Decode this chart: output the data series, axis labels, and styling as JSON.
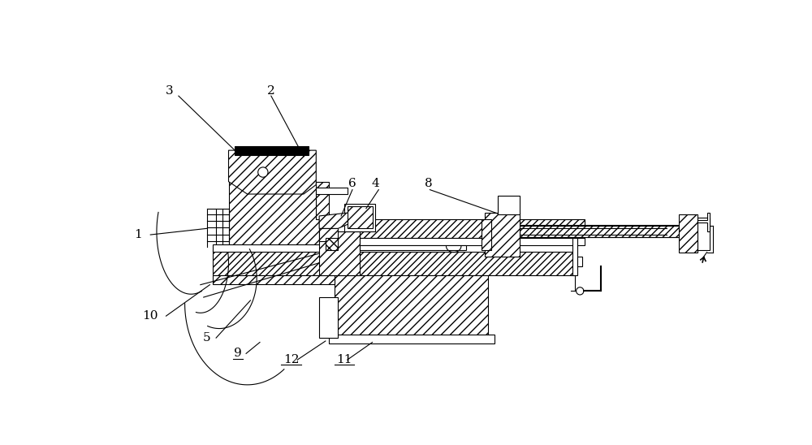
{
  "bg": "#ffffff",
  "lc": "#000000",
  "lw": 0.8,
  "fig_w": 10.0,
  "fig_h": 5.48,
  "dpi": 100,
  "xlim": [
    0,
    1000
  ],
  "ylim": [
    548,
    0
  ]
}
